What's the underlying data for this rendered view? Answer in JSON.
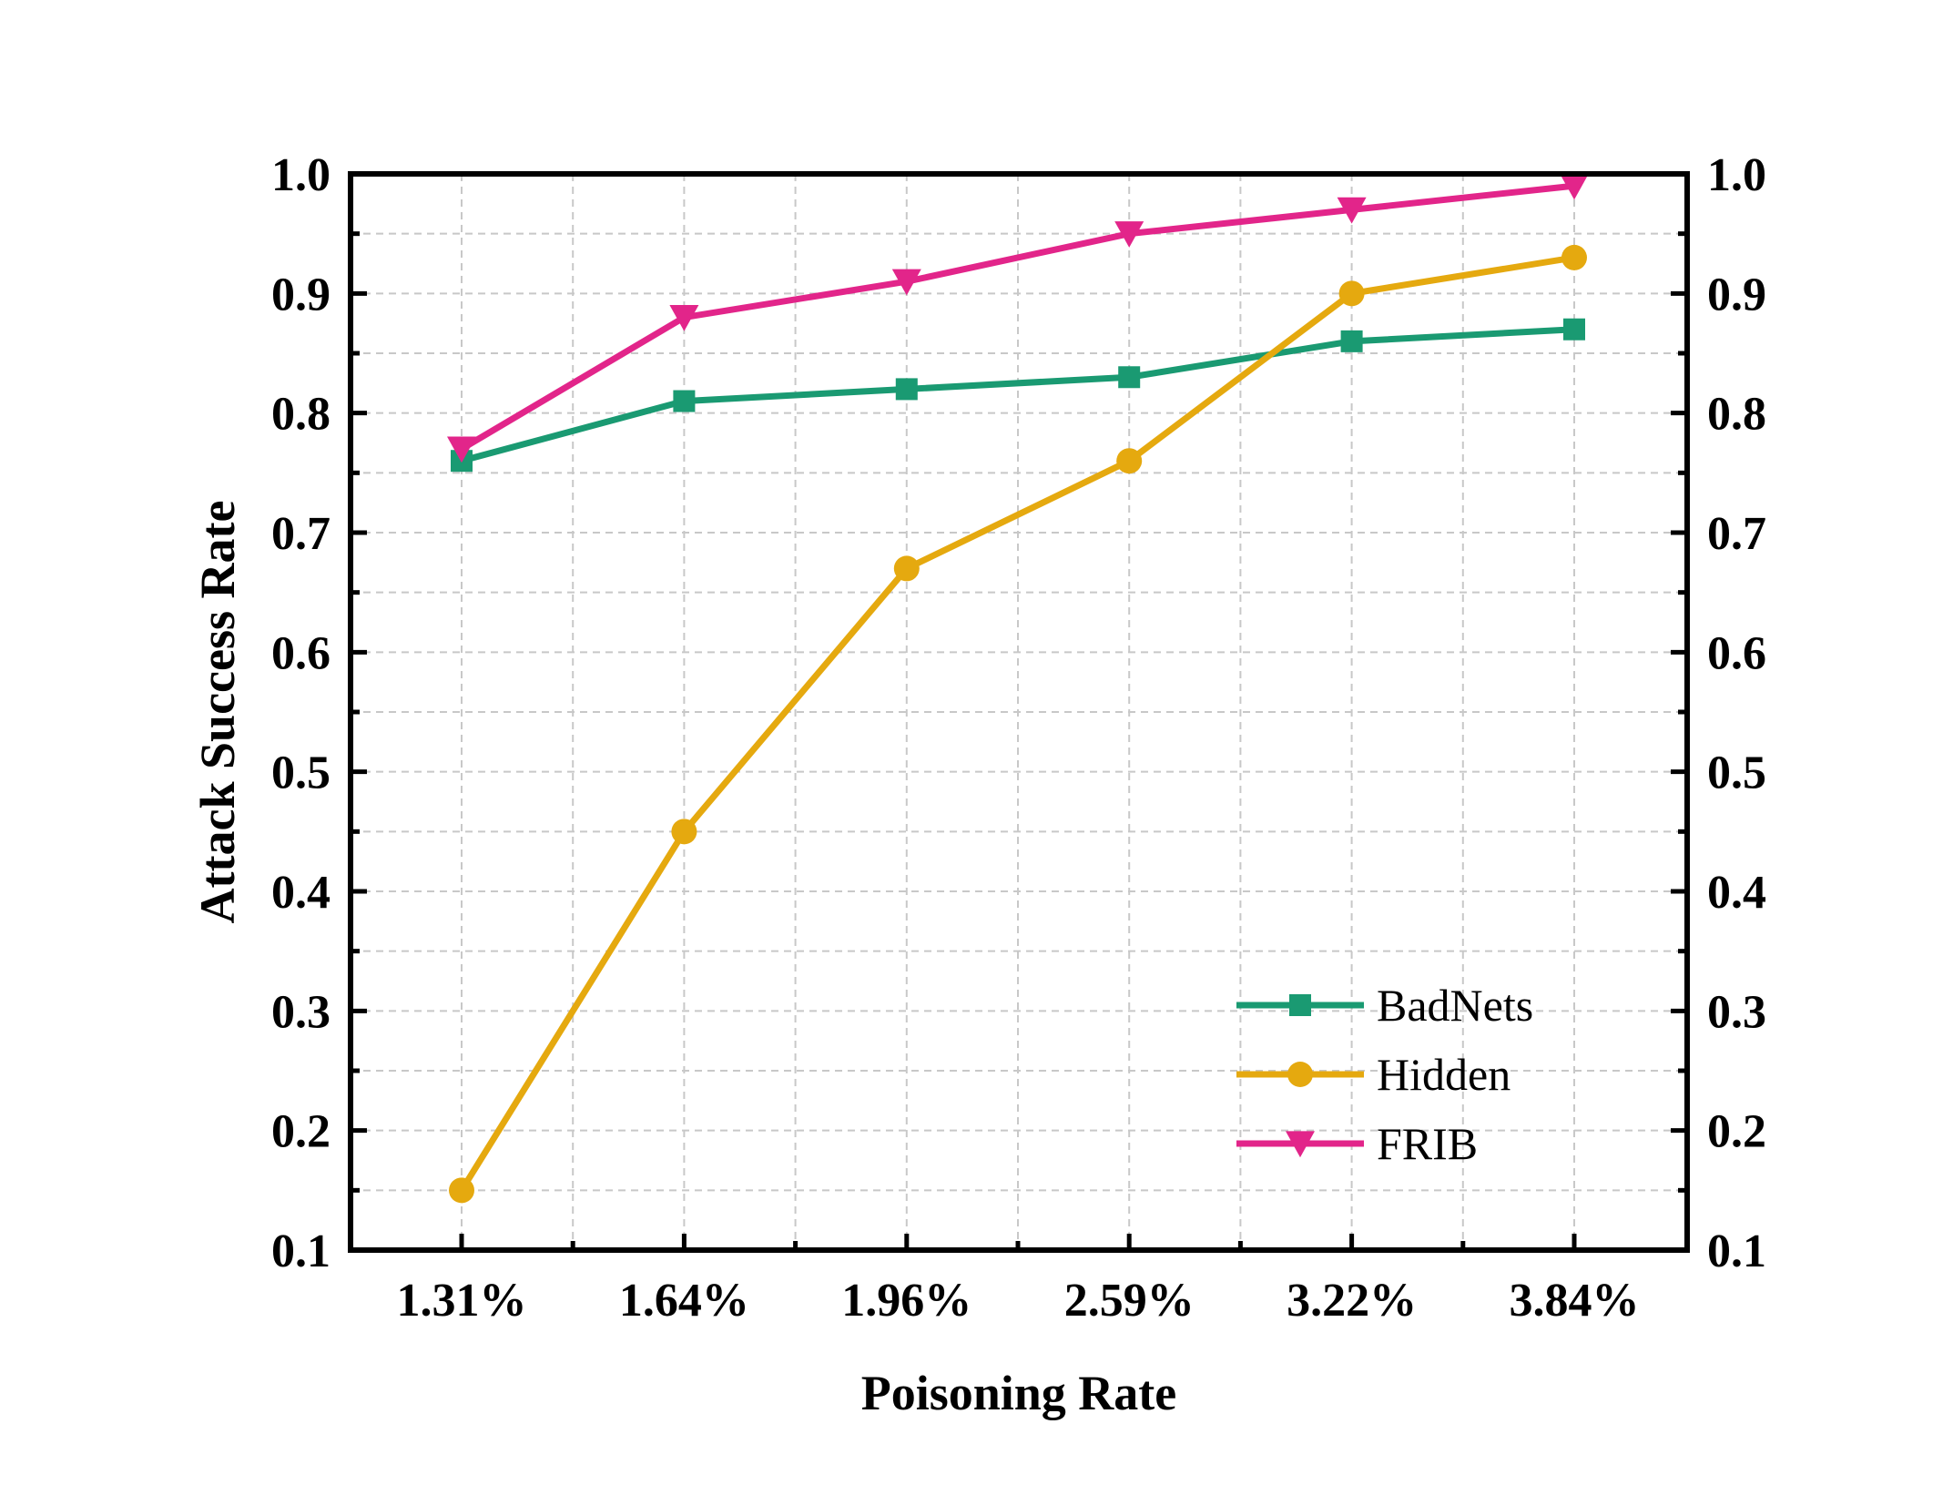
{
  "chart_data": {
    "type": "line",
    "title": "",
    "xlabel": "Poisoning Rate",
    "ylabel": "Attack Success Rate",
    "categories": [
      "1.31%",
      "1.64%",
      "1.96%",
      "2.59%",
      "3.22%",
      "3.84%"
    ],
    "ylim": [
      0.1,
      1.0
    ],
    "yticks": [
      "0.1",
      "0.2",
      "0.3",
      "0.4",
      "0.5",
      "0.6",
      "0.7",
      "0.8",
      "0.9",
      "1.0"
    ],
    "grid": true,
    "legend_position": "bottom-right",
    "series": [
      {
        "name": "BadNets",
        "marker": "square",
        "color": "#1a9a72",
        "values": [
          0.76,
          0.81,
          0.82,
          0.83,
          0.86,
          0.87
        ]
      },
      {
        "name": "Hidden",
        "marker": "circle",
        "color": "#e5a90f",
        "values": [
          0.15,
          0.45,
          0.67,
          0.76,
          0.9,
          0.93
        ]
      },
      {
        "name": "FRIB",
        "marker": "triangle-down",
        "color": "#e2258a",
        "values": [
          0.77,
          0.88,
          0.91,
          0.95,
          0.97,
          0.99
        ]
      }
    ]
  }
}
